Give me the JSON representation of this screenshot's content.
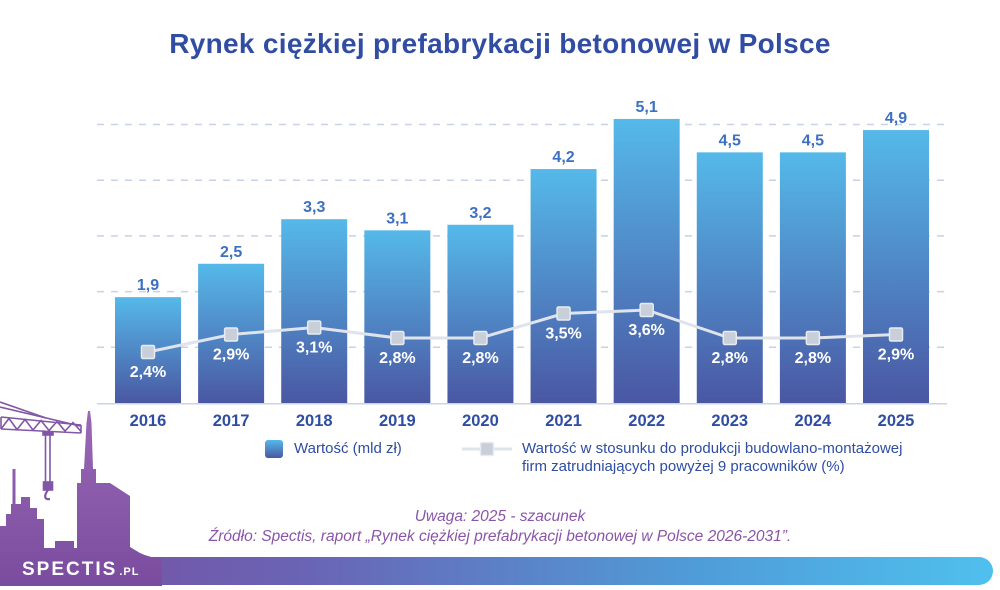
{
  "title": "Rynek ciężkiej prefabrykacji betonowej w Polsce",
  "chart_data": {
    "type": "bar",
    "title": "Rynek ciężkiej prefabrykacji betonowej w Polsce",
    "categories": [
      "2016",
      "2017",
      "2018",
      "2019",
      "2020",
      "2021",
      "2022",
      "2023",
      "2024",
      "2025"
    ],
    "series": [
      {
        "name": "Wartość (mld zł)",
        "type": "bar",
        "unit": "mld zł",
        "values": [
          1.9,
          2.5,
          3.3,
          3.1,
          3.2,
          4.2,
          5.1,
          4.5,
          4.5,
          4.9
        ],
        "labels": [
          "1,9",
          "2,5",
          "3,3",
          "3,1",
          "3,2",
          "4,2",
          "5,1",
          "4,5",
          "4,5",
          "4,9"
        ]
      },
      {
        "name": "Wartość w stosunku do produkcji budowlano-montażowej firm zatrudniających powyżej 9 pracowników (%)",
        "type": "line",
        "unit": "%",
        "values": [
          2.4,
          2.9,
          3.1,
          2.8,
          2.8,
          3.5,
          3.6,
          2.8,
          2.8,
          2.9
        ],
        "labels": [
          "2,4%",
          "2,9%",
          "3,1%",
          "2,8%",
          "2,8%",
          "3,5%",
          "3,6%",
          "2,8%",
          "2,8%",
          "2,9%"
        ]
      }
    ],
    "bar_axis": {
      "min": 0,
      "max": 5.5,
      "gridlines": [
        1,
        2,
        3,
        4,
        5
      ],
      "tick_labels_visible": false
    },
    "grid": "dashed-horizontal",
    "legend_position": "bottom",
    "xlabel": "",
    "ylabel": ""
  },
  "legend": {
    "bar_label": "Wartość (mld zł)",
    "line_label": "Wartość w stosunku do produkcji budowlano-montażowej firm zatrudniających powyżej 9 pracowników (%)"
  },
  "notes": {
    "note1": "Uwaga: 2025 - szacunek",
    "note2": "Źródło: Spectis, raport „Rynek ciężkiej prefabrykacji betonowej w Polsce 2026-2031”."
  },
  "branding": {
    "name": "SPECTIS",
    "suffix": ".PL"
  },
  "colors": {
    "title_text": "#304da3",
    "bar_gradient_top": "#55b9e9",
    "bar_gradient_bottom": "#4a57a3",
    "value_label": "#3c70c4",
    "year_label": "#2e4da3",
    "percent_label": "#ffffff",
    "line": "#dfe3eb",
    "marker_fill": "#c8cfd9",
    "gridline": "#c7d2e8",
    "baseline": "#c9d4e4",
    "note_text": "#8a55a8",
    "skyline_purple": "#7c4fa0",
    "bottom_bar_left": "#7b4ea0",
    "bottom_bar_right": "#4fc0ee"
  }
}
